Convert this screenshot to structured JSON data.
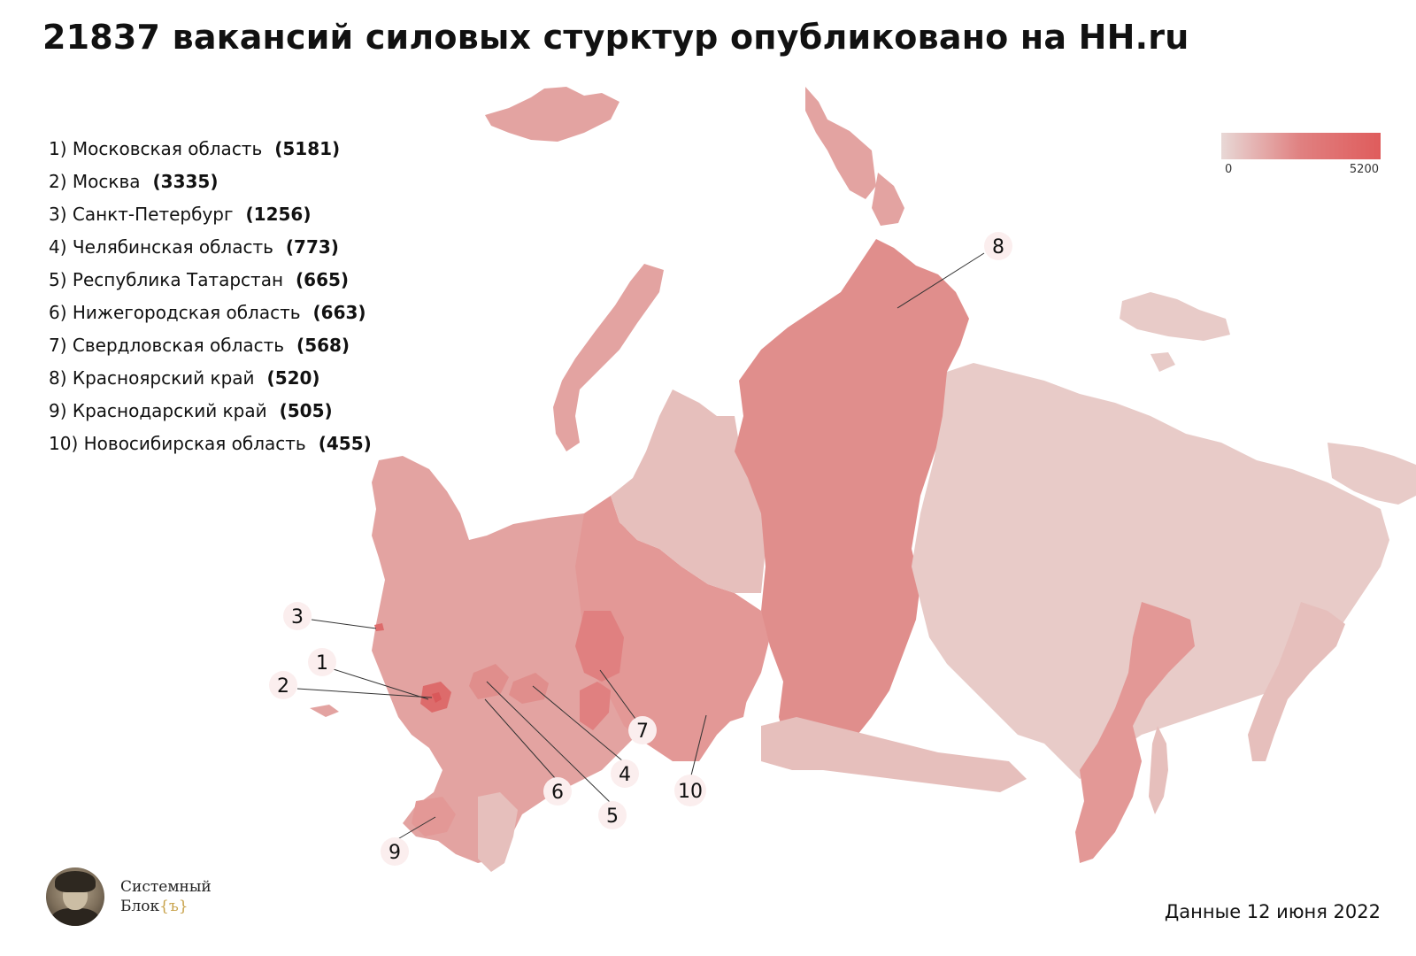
{
  "title": "21837 вакансий силовых стурктур опубликовано на HH.ru",
  "ranking": [
    {
      "rank_label": "1)",
      "region": "Московская область",
      "count": "(5181)",
      "value": 5181
    },
    {
      "rank_label": "2)",
      "region": "Москва",
      "count": "(3335)",
      "value": 3335
    },
    {
      "rank_label": "3)",
      "region": "Санкт-Петербург",
      "count": "(1256)",
      "value": 1256
    },
    {
      "rank_label": "4)",
      "region": "Челябинская область",
      "count": "(773)",
      "value": 773
    },
    {
      "rank_label": "5)",
      "region": "Республика Татарстан",
      "count": "(665)",
      "value": 665
    },
    {
      "rank_label": "6)",
      "region": "Нижегородская область",
      "count": "(663)",
      "value": 663
    },
    {
      "rank_label": "7)",
      "region": "Свердловская область",
      "count": "(568)",
      "value": 568
    },
    {
      "rank_label": "8)",
      "region": "Красноярский край",
      "count": "(520)",
      "value": 520
    },
    {
      "rank_label": "9)",
      "region": "Краснодарский край",
      "count": "(505)",
      "value": 505
    },
    {
      "rank_label": "10)",
      "region": "Новосибирская область",
      "count": "(455)",
      "value": 455
    }
  ],
  "scale": {
    "min_label": "0",
    "max_label": "5200",
    "min": 0,
    "max": 5200,
    "color_low": "#e8d8d6",
    "color_high": "#df5c5c"
  },
  "map_callouts": [
    "1",
    "2",
    "3",
    "4",
    "5",
    "6",
    "7",
    "8",
    "9",
    "10"
  ],
  "colors": {
    "background": "#ffffff",
    "region_base": "#e6bfbc",
    "region_west": "#e3a3a1",
    "krasnoyarsk": "#e08e8c",
    "east": "#e8cbc8",
    "moscow": "#dd6b6b"
  },
  "brand": {
    "line1": "Системный",
    "line2": "Блок",
    "accent": "{ъ}",
    "avatar_icon": "portrait-photo"
  },
  "source_note": "Данные 12 июня 2022"
}
